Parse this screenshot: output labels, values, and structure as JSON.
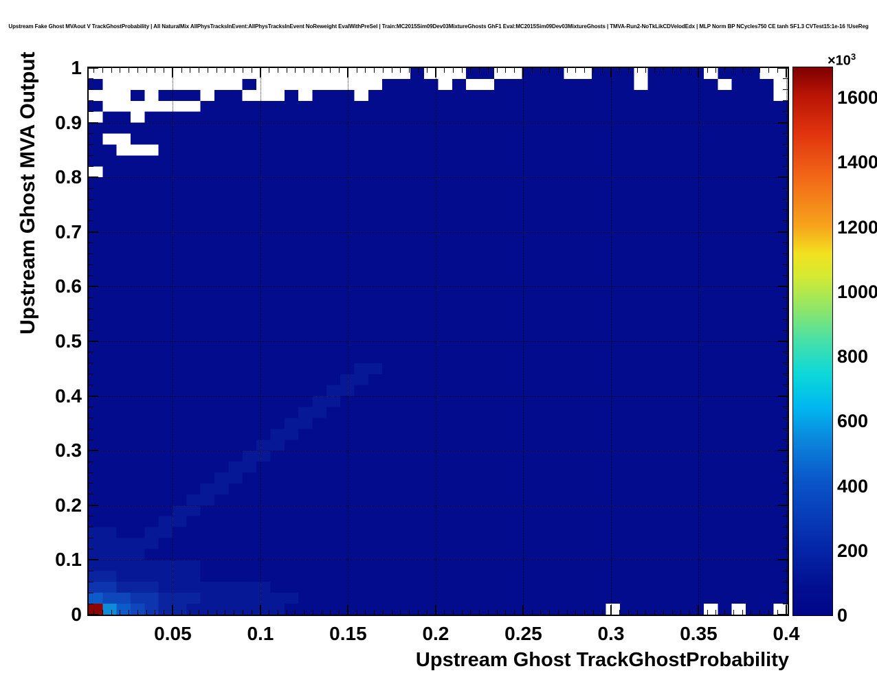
{
  "title": "Upstream Fake Ghost MVAout V TrackGhostProbability | All NaturalMix AllPhysTracksInEvent:AllPhysTracksInEvent NoReweight EvalWithPreSel | Train:MC2015Sim09Dev03MixtureGhosts GhF1 Eval:MC2015Sim09Dev03MixtureGhosts | TMVA-Run2-NoTkLikCDVelodEdx | MLP Norm BP NCycles750 CE tanh SF1.3 CVTest15:1e-16 !UseReg",
  "chart_data": {
    "type": "heatmap",
    "title": "Upstream Fake Ghost MVAout V TrackGhostProbability | All NaturalMix AllPhysTracksInEvent:AllPhysTracksInEvent NoReweight EvalWithPreSel | Train:MC2015Sim09Dev03MixtureGhosts GhF1 Eval:MC2015Sim09Dev03MixtureGhosts | TMVA-Run2-NoTkLikCDVelodEdx | MLP Norm BP NCycles750 CE tanh SF1.3 CVTest15:1e-16 !UseReg",
    "grid": "dotted",
    "x_axis": {
      "title": "Upstream Ghost TrackGhostProbability",
      "lim": [
        0.002,
        0.4008
      ],
      "minor_step": 0.005,
      "major_ticks": [
        {
          "v": 0.05,
          "label": "0.05"
        },
        {
          "v": 0.1,
          "label": "0.1"
        },
        {
          "v": 0.15,
          "label": "0.15"
        },
        {
          "v": 0.2,
          "label": "0.2"
        },
        {
          "v": 0.25,
          "label": "0.25"
        },
        {
          "v": 0.3,
          "label": "0.3"
        },
        {
          "v": 0.35,
          "label": "0.35"
        },
        {
          "v": 0.4,
          "label": "0.4"
        }
      ]
    },
    "y_axis": {
      "title": "Upstream Ghost MVA Output",
      "lim": [
        0,
        1
      ],
      "minor_step": 0.02,
      "major_ticks": [
        {
          "v": 1,
          "label": "1"
        },
        {
          "v": 0.9,
          "label": "0.9"
        },
        {
          "v": 0.8,
          "label": "0.8"
        },
        {
          "v": 0.7,
          "label": "0.7"
        },
        {
          "v": 0.6,
          "label": "0.6"
        },
        {
          "v": 0.5,
          "label": "0.5"
        },
        {
          "v": 0.4,
          "label": "0.4"
        },
        {
          "v": 0.3,
          "label": "0.3"
        },
        {
          "v": 0.2,
          "label": "0.2"
        },
        {
          "v": 0.1,
          "label": "0.1"
        },
        {
          "v": 0,
          "label": "0"
        }
      ]
    },
    "z_axis": {
      "unit": "entries ×10³",
      "scale_prefix": "×10",
      "scale_exp": "3",
      "max_k": 1694,
      "ticks": [
        {
          "v": 0,
          "label": "0"
        },
        {
          "v": 200,
          "label": "200"
        },
        {
          "v": 400,
          "label": "400"
        },
        {
          "v": 600,
          "label": "600"
        },
        {
          "v": 800,
          "label": "800"
        },
        {
          "v": 1000,
          "label": "1000"
        },
        {
          "v": 1200,
          "label": "1200"
        },
        {
          "v": 1400,
          "label": "1400"
        },
        {
          "v": 1600,
          "label": "1600"
        }
      ]
    },
    "palette": {
      "stops": [
        {
          "pos": 0,
          "color": "#01068a"
        },
        {
          "pos": 0.05,
          "color": "#020f90"
        },
        {
          "pos": 0.12,
          "color": "#0425a8"
        },
        {
          "pos": 0.24,
          "color": "#0a53c8"
        },
        {
          "pos": 0.32,
          "color": "#0b86dc"
        },
        {
          "pos": 0.38,
          "color": "#00b8f0"
        },
        {
          "pos": 0.44,
          "color": "#0cd8d8"
        },
        {
          "pos": 0.5,
          "color": "#46e0a8"
        },
        {
          "pos": 0.56,
          "color": "#8fe668"
        },
        {
          "pos": 0.62,
          "color": "#d6ea30"
        },
        {
          "pos": 0.66,
          "color": "#f2e120"
        },
        {
          "pos": 0.71,
          "color": "#f7a41c"
        },
        {
          "pos": 0.8,
          "color": "#f26718"
        },
        {
          "pos": 0.88,
          "color": "#e0330e"
        },
        {
          "pos": 0.95,
          "color": "#b81405"
        },
        {
          "pos": 1,
          "color": "#7d0000"
        }
      ]
    },
    "cells": {
      "cols": 50,
      "rows": 50,
      "row_order": "top-to-bottom (y=1 first)",
      "char_values_k": {
        ".": 0,
        "0": 10,
        "1": 35,
        "2": 70,
        "3": 110,
        "4": 150,
        "5": 210,
        "6": 580,
        "R": 1690
      },
      "char_colors": {
        ".": "#ffffff",
        "0": "#020c8c",
        "1": "#071896",
        "2": "#0a24a0",
        "3": "#0c35ae",
        "4": "#0e46bc",
        "5": "#0d5bca",
        "6": "#0e8cd8",
        "R": "#8e0400"
      },
      "rows_top_to_bottom": [
        ".......................0...00..000..000.0000.000..",
        "0..........0.........0000.0..0000000000.00000.000.",
        "...0.000.00...0.000.00000000000000000000000000000.",
        "0.......000000000000000000000000000000000000000000",
        ".00.0000000000000000000000000000000000000000000000",
        "00000000000000000000000000000000000000000000000000",
        "0..00000000000000000000000000000000000000000000000",
        "00...000000000000000000000000000000000000000000000",
        "00000000000000000000000000000000000000000000000000",
        ".0000000000000000000000000000000000000000000000000",
        "00000000000000000000000000000000000000000000000000",
        "00000000000000000000000000000000000000000000000000",
        "00000000000000000000000000000000000000000000000000",
        "00000000000000000000000000000000000000000000000000",
        "00000000000000000000000000000000000000000000000000",
        "00000000000000000000000000000000000000000000000000",
        "00000000000000000000000000000000000000000000000000",
        "00000000000000000000000000000000000000000000000000",
        "00000000000000000000000000000000000000000000000000",
        "00000000000000000000000000000000000000000000000000",
        "00000000000000000000000000000000000000000000000000",
        "00000000000000000000000000000000000000000000000000",
        "00000000000000000000000000000000000000000000000000",
        "00000000000000000000000000000000000000000000000000",
        "00000000000000000000000000000000000000000000000000",
        "00000000000000000000000000000000000000000000000000",
        "00000000000000000000000000000000000000000000000000",
        "00000000000000000001100000000000000000000000000000",
        "00000000000000000011000000000000000000000000000000",
        "00000000000000000110000000000000000000000000000000",
        "00000000000000001100000000000000000000000000000000",
        "00000000000000011000000000000000000000000000000000",
        "00000000000000110000000000000000000000000000000000",
        "00000000000001100000000000000000000000000000000000",
        "00000000000011000000000000000000000000000000000000",
        "00000000000110000000000000000000000000000000000000",
        "00000000001100000000000000000000000000000000000000",
        "00000000011000000000000000000000000000000000000000",
        "00000000110000000000000000000000000000000000000000",
        "00000001100000000000000000000000000000000000000000",
        "00000011000000000000000000000000000000000000000000",
        "00000110000000000000000000000000000000000000000000",
        "11001100000000000000000000000000000000000000000000",
        "11111000000000000000000000000000000000000000000000",
        "11110000000000000000000000000000000000000000000000",
        "11111111000000000000000000000000000000000000000000",
        "22111111000000000000000000000000000000000000000000",
        "33222111111110000000000000000000000000000000000000",
        "54433222111111100000000000000000000000000000000000",
        "R654322111111100000000000000000000000.000000.0.00."
      ]
    }
  }
}
